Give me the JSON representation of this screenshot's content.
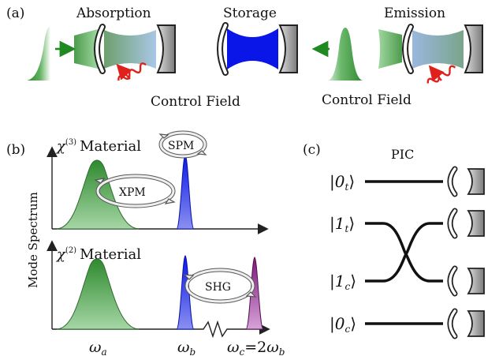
{
  "panels": {
    "a": {
      "tag": "(a)",
      "stages": [
        "Absorption",
        "Storage",
        "Emission"
      ],
      "control_labels": [
        "Control Field",
        "Control Field"
      ]
    },
    "b": {
      "tag": "(b)",
      "ylabel": "Mode Spectrum",
      "top": {
        "chi_symbol": "χ",
        "chi_order": "(3)",
        "material": "Material",
        "processes": [
          "SPM",
          "XPM"
        ]
      },
      "bottom": {
        "chi_symbol": "χ",
        "chi_order": "(2)",
        "material": "Material",
        "processes": [
          "SHG"
        ]
      },
      "freq_labels": {
        "a": {
          "sym": "ω",
          "sub": "a"
        },
        "b": {
          "sym": "ω",
          "sub": "b"
        },
        "c": {
          "sym": "ω",
          "sub": "c",
          "eq": "=2",
          "sym2": "ω",
          "sub2": "b"
        }
      }
    },
    "c": {
      "tag": "(c)",
      "title": "PIC",
      "kets": [
        {
          "num": "0",
          "sub": "t"
        },
        {
          "num": "1",
          "sub": "t"
        },
        {
          "num": "1",
          "sub": "c"
        },
        {
          "num": "0",
          "sub": "c"
        }
      ]
    }
  },
  "colors": {
    "green": "#3f9a3f",
    "green_arrow": "#1f8a1f",
    "blue": "#0a16e8",
    "purple": "#8a1f8a",
    "control_red": "#e0201b",
    "mirror_gray": "#8a8a8a",
    "mirror_edge": "#222222"
  }
}
